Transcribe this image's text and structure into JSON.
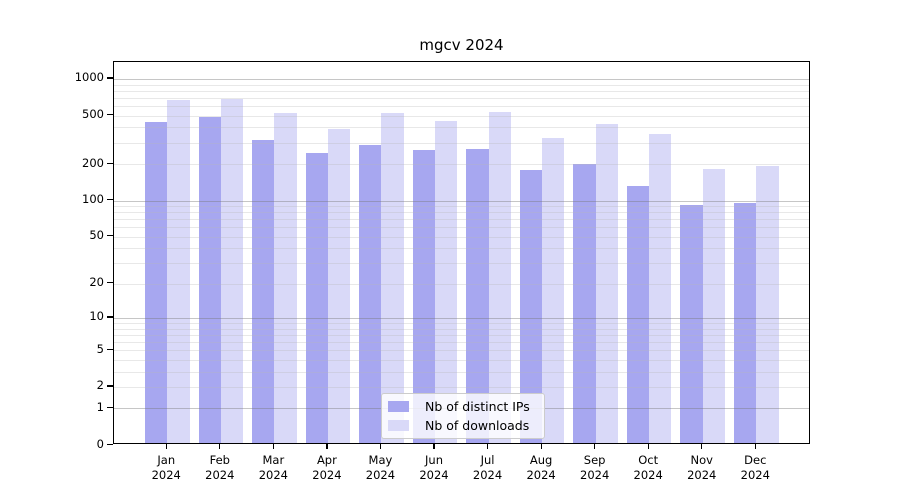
{
  "title": "mgcv 2024",
  "chart_data": {
    "type": "bar",
    "title": "mgcv 2024",
    "categories": [
      "Jan",
      "Feb",
      "Mar",
      "Apr",
      "May",
      "Jun",
      "Jul",
      "Aug",
      "Sep",
      "Oct",
      "Nov",
      "Dec"
    ],
    "x_year": "2024",
    "series": [
      {
        "name": "Nb of distinct IPs",
        "color": "#a7a7f0",
        "values": [
          425,
          466,
          306,
          236,
          278,
          251,
          258,
          172,
          193,
          127,
          89,
          92
        ]
      },
      {
        "name": "Nb of downloads",
        "color": "#d9d9f8",
        "values": [
          648,
          660,
          508,
          371,
          503,
          432,
          513,
          317,
          413,
          342,
          175,
          186
        ]
      }
    ],
    "y_ticks": [
      1000,
      500,
      200,
      100,
      50,
      20,
      10,
      5,
      2,
      1,
      0
    ],
    "y_scale": "log1p",
    "ylim": [
      0,
      1377
    ],
    "grid": true,
    "grid_major_at": [
      1,
      10,
      100,
      1000
    ],
    "legend_position": "lower center",
    "axis_color": "#000000",
    "grid_major_color": "#9a9a9a",
    "grid_minor_color": "#dddddd"
  }
}
